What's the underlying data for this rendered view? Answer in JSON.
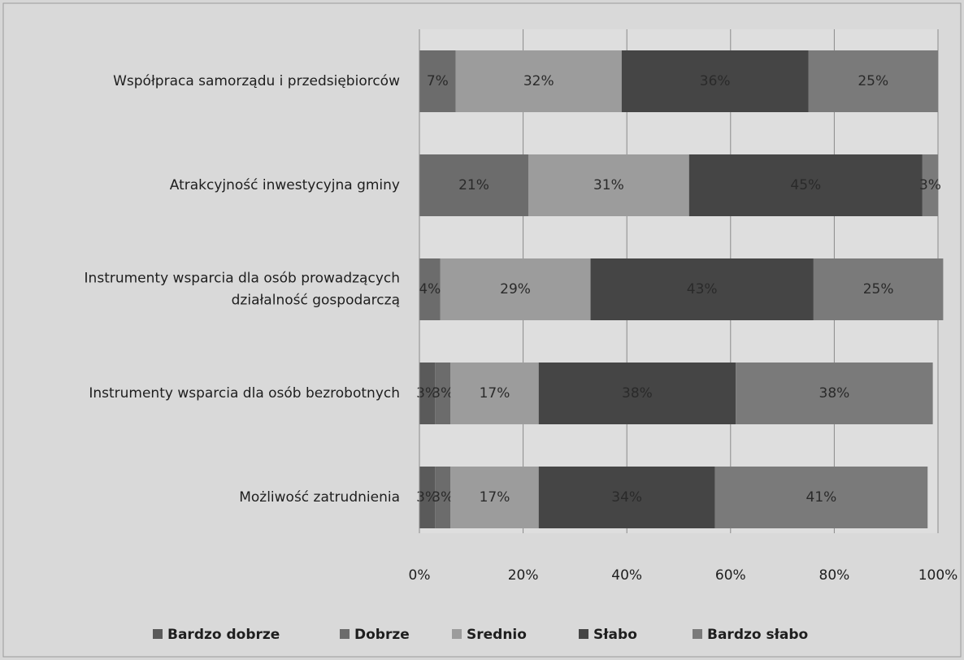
{
  "chart_data": {
    "type": "stacked-bar-horizontal",
    "categories": [
      [
        "Współpraca samorządu i przedsiębiorców"
      ],
      [
        "Atrakcyjność inwestycyjna gminy"
      ],
      [
        "Instrumenty wsparcia dla osób prowadzących",
        "działalność gospodarczą"
      ],
      [
        "Instrumenty wsparcia dla osób bezrobotnych"
      ],
      [
        "Możliwość zatrudnienia"
      ]
    ],
    "series": [
      {
        "name": "Bardzo dobrze",
        "color": "#5a5a5a",
        "values": [
          null,
          null,
          null,
          3,
          3
        ],
        "value_labels": [
          null,
          null,
          null,
          "3%",
          "3%"
        ]
      },
      {
        "name": "Dobrze",
        "color": "#6c6c6c",
        "values": [
          7,
          21,
          4,
          3,
          3
        ],
        "value_labels": [
          "7%",
          "21%",
          "4%",
          "3%",
          "3%"
        ]
      },
      {
        "name": "Srednio",
        "color": "#9c9c9c",
        "values": [
          32,
          31,
          29,
          17,
          17
        ],
        "value_labels": [
          "32%",
          "31%",
          "29%",
          "17%",
          "17%"
        ]
      },
      {
        "name": "Słabo",
        "color": "#454545",
        "values": [
          36,
          45,
          43,
          38,
          34
        ],
        "value_labels": [
          "36%",
          "45%",
          "43%",
          "38%",
          "34%"
        ]
      },
      {
        "name": "Bardzo słabo",
        "color": "#7a7a7a",
        "values": [
          25,
          3,
          25,
          38,
          41
        ],
        "value_labels": [
          "25%",
          "3%",
          "25%",
          "38%",
          "41%"
        ]
      }
    ],
    "xlim": [
      0,
      100
    ],
    "xticks": [
      {
        "value": 0,
        "label": "0%"
      },
      {
        "value": 20,
        "label": "20%"
      },
      {
        "value": 40,
        "label": "40%"
      },
      {
        "value": 60,
        "label": "60%"
      },
      {
        "value": 80,
        "label": "80%"
      },
      {
        "value": 100,
        "label": "100%"
      }
    ],
    "grid": true,
    "legend": "bottom"
  }
}
